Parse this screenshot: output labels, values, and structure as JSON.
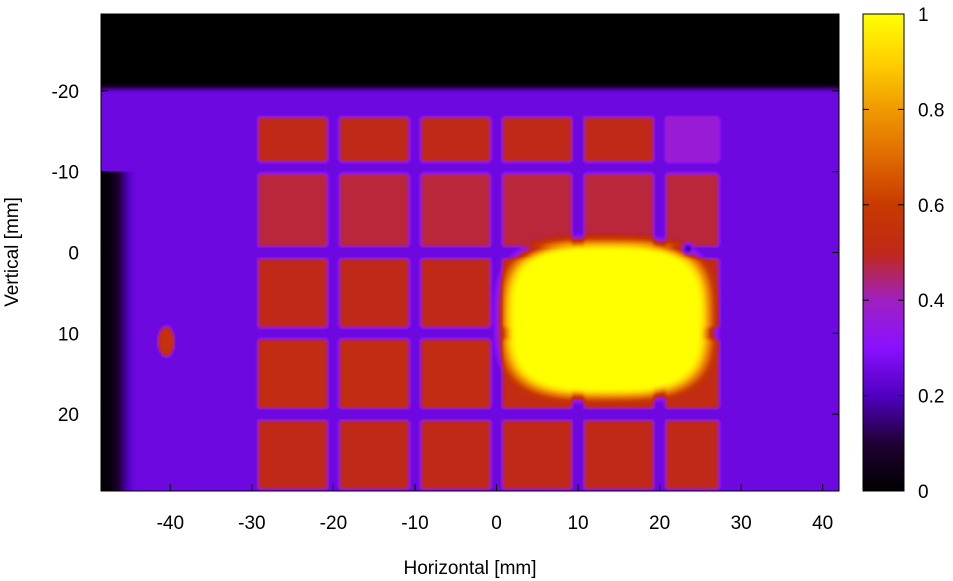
{
  "chart_data": {
    "type": "heatmap",
    "title": "",
    "xlabel": "Horizontal [mm]",
    "ylabel": "Vertical [mm]",
    "xlim": [
      -48.5,
      42.0
    ],
    "ylim": [
      -29.5,
      29.5
    ],
    "y_axis_inverted": true,
    "x_ticks": [
      -40,
      -30,
      -20,
      -10,
      0,
      10,
      20,
      30,
      40
    ],
    "x_tick_labels": [
      "-40",
      "-30",
      "-20",
      "-10",
      "0",
      "10",
      "20",
      "30",
      "40"
    ],
    "y_ticks": [
      -20,
      -10,
      0,
      10,
      20
    ],
    "y_tick_labels": [
      "-20",
      "-10",
      "0",
      "10",
      "20"
    ],
    "colorbar": {
      "range": [
        0,
        1
      ],
      "ticks": [
        0,
        0.2,
        0.4,
        0.6,
        0.8,
        1
      ],
      "tick_labels": [
        "0",
        "0.2",
        "0.4",
        "0.6",
        "0.8",
        "1"
      ],
      "palette": "black-purple-red-orange-yellow"
    },
    "field": {
      "background_level": 0.25,
      "dark_top_band_y_below": -20.3,
      "dark_left_band_x_below": -46.5,
      "panel_rows": [
        {
          "y_range": [
            -17,
            -11
          ],
          "level": 0.5
        },
        {
          "y_range": [
            -10,
            -0.5
          ],
          "level": 0.48
        },
        {
          "y_range": [
            0.5,
            9.5
          ],
          "level": 0.5
        },
        {
          "y_range": [
            10.5,
            19.5
          ],
          "level": 0.52
        },
        {
          "y_range": [
            20.5,
            29.5
          ],
          "level": 0.5
        }
      ],
      "panel_columns": [
        {
          "x_range": [
            -29.5,
            -20.5
          ]
        },
        {
          "x_range": [
            -19.5,
            -10.5
          ]
        },
        {
          "x_range": [
            -9.5,
            -0.5
          ]
        },
        {
          "x_range": [
            0.5,
            9.5
          ]
        },
        {
          "x_range": [
            10.5,
            19.5
          ]
        },
        {
          "x_range": [
            20.5,
            27.5
          ]
        }
      ],
      "hot_spot": {
        "x_range": [
          0,
          27
        ],
        "y_range": [
          -2,
          18.5
        ],
        "level": 1.0
      },
      "small_spot": {
        "x": -40.5,
        "y": 11,
        "level": 0.55
      },
      "dark_dot": {
        "x": 23.5,
        "y": -0.5,
        "level": 0.1
      }
    }
  }
}
